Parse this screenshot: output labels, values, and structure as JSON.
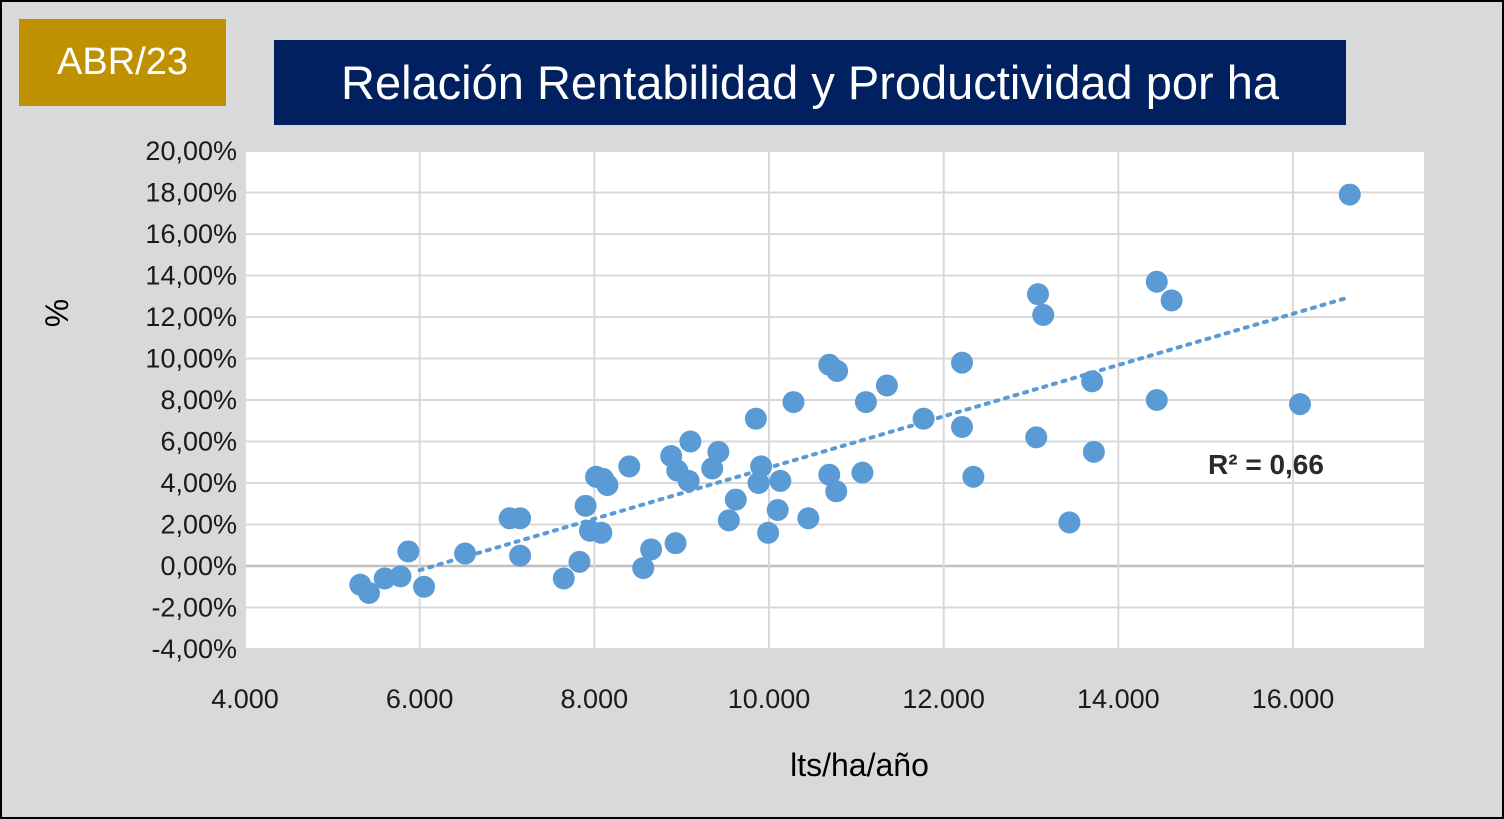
{
  "badge": {
    "text": "ABR/23"
  },
  "title": {
    "text": "Relación Rentabilidad y Productividad por ha"
  },
  "colors": {
    "badge_bg": "#bf9000",
    "title_bg": "#002060",
    "frame_bg": "#d9d9d9",
    "plot_bg": "#ffffff",
    "grid": "#d9d9d9",
    "point": "#5b9bd5",
    "trendline": "#5b9bd5"
  },
  "chart_data": {
    "type": "scatter",
    "xlabel": "lts/ha/año",
    "ylabel": "%",
    "xlim": [
      4000,
      17500
    ],
    "ylim": [
      -4,
      20
    ],
    "x_ticks": [
      4000,
      6000,
      8000,
      10000,
      12000,
      14000,
      16000
    ],
    "x_tick_labels": [
      "4.000",
      "6.000",
      "8.000",
      "10.000",
      "12.000",
      "14.000",
      "16.000"
    ],
    "y_ticks": [
      -4,
      -2,
      0,
      2,
      4,
      6,
      8,
      10,
      12,
      14,
      16,
      18,
      20
    ],
    "y_tick_labels": [
      "-4,00%",
      "-2,00%",
      "0,00%",
      "2,00%",
      "4,00%",
      "6,00%",
      "8,00%",
      "10,00%",
      "12,00%",
      "14,00%",
      "16,00%",
      "18,00%",
      "20,00%"
    ],
    "grid": true,
    "trendline": {
      "type": "linear",
      "x_range": [
        6000,
        16600
      ],
      "y_at_start": -0.2,
      "y_at_end": 12.9,
      "r_squared_label": "R² = 0,66"
    },
    "points": [
      [
        5320,
        -0.9
      ],
      [
        5420,
        -1.3
      ],
      [
        5600,
        -0.6
      ],
      [
        5780,
        -0.5
      ],
      [
        5870,
        0.7
      ],
      [
        6050,
        -1.0
      ],
      [
        6520,
        0.6
      ],
      [
        7030,
        2.3
      ],
      [
        7150,
        2.3
      ],
      [
        7150,
        0.5
      ],
      [
        7650,
        -0.6
      ],
      [
        7830,
        0.2
      ],
      [
        7900,
        2.9
      ],
      [
        7950,
        1.7
      ],
      [
        8020,
        4.3
      ],
      [
        8100,
        4.2
      ],
      [
        8150,
        3.9
      ],
      [
        8080,
        1.6
      ],
      [
        8400,
        4.8
      ],
      [
        8560,
        -0.1
      ],
      [
        8650,
        0.8
      ],
      [
        8880,
        5.3
      ],
      [
        8950,
        4.6
      ],
      [
        8930,
        1.1
      ],
      [
        9100,
        6.0
      ],
      [
        9080,
        4.1
      ],
      [
        9350,
        4.7
      ],
      [
        9420,
        5.5
      ],
      [
        9540,
        2.2
      ],
      [
        9620,
        3.2
      ],
      [
        9850,
        7.1
      ],
      [
        9880,
        4.0
      ],
      [
        9910,
        4.8
      ],
      [
        9990,
        1.6
      ],
      [
        10100,
        2.7
      ],
      [
        10130,
        4.1
      ],
      [
        10280,
        7.9
      ],
      [
        10450,
        2.3
      ],
      [
        10690,
        9.7
      ],
      [
        10690,
        4.4
      ],
      [
        10780,
        9.4
      ],
      [
        10770,
        3.6
      ],
      [
        11070,
        4.5
      ],
      [
        11110,
        7.9
      ],
      [
        11350,
        8.7
      ],
      [
        11770,
        7.1
      ],
      [
        12210,
        9.8
      ],
      [
        12210,
        6.7
      ],
      [
        12340,
        4.3
      ],
      [
        13060,
        6.2
      ],
      [
        13080,
        13.1
      ],
      [
        13140,
        12.1
      ],
      [
        13440,
        2.1
      ],
      [
        13700,
        8.9
      ],
      [
        13720,
        5.5
      ],
      [
        14440,
        13.7
      ],
      [
        14440,
        8.0
      ],
      [
        14610,
        12.8
      ],
      [
        16080,
        7.8
      ],
      [
        16650,
        17.9
      ]
    ]
  }
}
